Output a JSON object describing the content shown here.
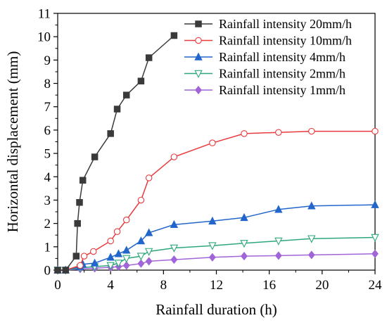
{
  "chart_data": {
    "type": "line",
    "xlabel": "Rainfall duration (h)",
    "ylabel": "Horizontal displacement (mm)",
    "xlim": [
      0,
      24
    ],
    "ylim": [
      0,
      11
    ],
    "xticks": [
      0,
      4,
      8,
      12,
      16,
      20,
      24
    ],
    "yticks": [
      0,
      1,
      2,
      3,
      4,
      5,
      6,
      7,
      8,
      9,
      10,
      11
    ],
    "grid": false,
    "legend_position": "top-right",
    "series": [
      {
        "name": "Rainfall intensity 20mm/h",
        "color": "#3a3a3a",
        "marker": "square-filled",
        "points": [
          [
            0,
            0
          ],
          [
            0.6,
            0
          ],
          [
            1.4,
            0.6
          ],
          [
            1.5,
            2.0
          ],
          [
            1.65,
            2.9
          ],
          [
            1.9,
            3.85
          ],
          [
            2.8,
            4.85
          ],
          [
            4.0,
            5.85
          ],
          [
            4.5,
            6.9
          ],
          [
            5.2,
            7.5
          ],
          [
            6.3,
            8.1
          ],
          [
            6.9,
            9.1
          ],
          [
            8.8,
            10.05
          ]
        ]
      },
      {
        "name": "Rainfall intensity 10mm/h",
        "color": "#e8393d",
        "marker": "circle-open",
        "points": [
          [
            0,
            0
          ],
          [
            0.6,
            0
          ],
          [
            1.7,
            0.2
          ],
          [
            2.0,
            0.6
          ],
          [
            2.7,
            0.8
          ],
          [
            4.0,
            1.25
          ],
          [
            4.5,
            1.65
          ],
          [
            5.2,
            2.15
          ],
          [
            6.3,
            3.0
          ],
          [
            6.9,
            3.95
          ],
          [
            8.8,
            4.85
          ],
          [
            11.7,
            5.45
          ],
          [
            14.1,
            5.85
          ],
          [
            16.7,
            5.9
          ],
          [
            19.2,
            5.95
          ],
          [
            24,
            5.95
          ]
        ]
      },
      {
        "name": "Rainfall intensity 4mm/h",
        "color": "#2266cc",
        "marker": "triangle-up-filled",
        "points": [
          [
            0,
            0
          ],
          [
            0.6,
            0
          ],
          [
            1.7,
            0.15
          ],
          [
            1.9,
            0.25
          ],
          [
            2.8,
            0.3
          ],
          [
            4.0,
            0.55
          ],
          [
            4.6,
            0.7
          ],
          [
            5.2,
            0.85
          ],
          [
            6.3,
            1.25
          ],
          [
            6.9,
            1.6
          ],
          [
            8.8,
            1.95
          ],
          [
            11.7,
            2.1
          ],
          [
            14.1,
            2.25
          ],
          [
            16.7,
            2.6
          ],
          [
            19.2,
            2.75
          ],
          [
            24,
            2.8
          ]
        ]
      },
      {
        "name": "Rainfall intensity 2mm/h",
        "color": "#2ea87a",
        "marker": "triangle-down-open",
        "points": [
          [
            0,
            0
          ],
          [
            0.6,
            0
          ],
          [
            1.7,
            0.1
          ],
          [
            2.8,
            0.15
          ],
          [
            4.0,
            0.2
          ],
          [
            4.6,
            0.3
          ],
          [
            5.2,
            0.5
          ],
          [
            6.3,
            0.6
          ],
          [
            6.9,
            0.8
          ],
          [
            8.8,
            0.95
          ],
          [
            11.7,
            1.05
          ],
          [
            14.1,
            1.15
          ],
          [
            16.7,
            1.25
          ],
          [
            19.2,
            1.35
          ],
          [
            24,
            1.4
          ]
        ]
      },
      {
        "name": "Rainfall intensity 1mm/h",
        "color": "#a065d8",
        "marker": "diamond-filled",
        "points": [
          [
            0,
            0
          ],
          [
            0.6,
            0
          ],
          [
            1.7,
            0.05
          ],
          [
            2.8,
            0.08
          ],
          [
            4.0,
            0.12
          ],
          [
            4.6,
            0.15
          ],
          [
            5.2,
            0.2
          ],
          [
            6.3,
            0.28
          ],
          [
            6.9,
            0.38
          ],
          [
            8.8,
            0.45
          ],
          [
            11.7,
            0.55
          ],
          [
            14.1,
            0.6
          ],
          [
            16.7,
            0.62
          ],
          [
            19.2,
            0.65
          ],
          [
            24,
            0.7
          ]
        ]
      }
    ]
  }
}
